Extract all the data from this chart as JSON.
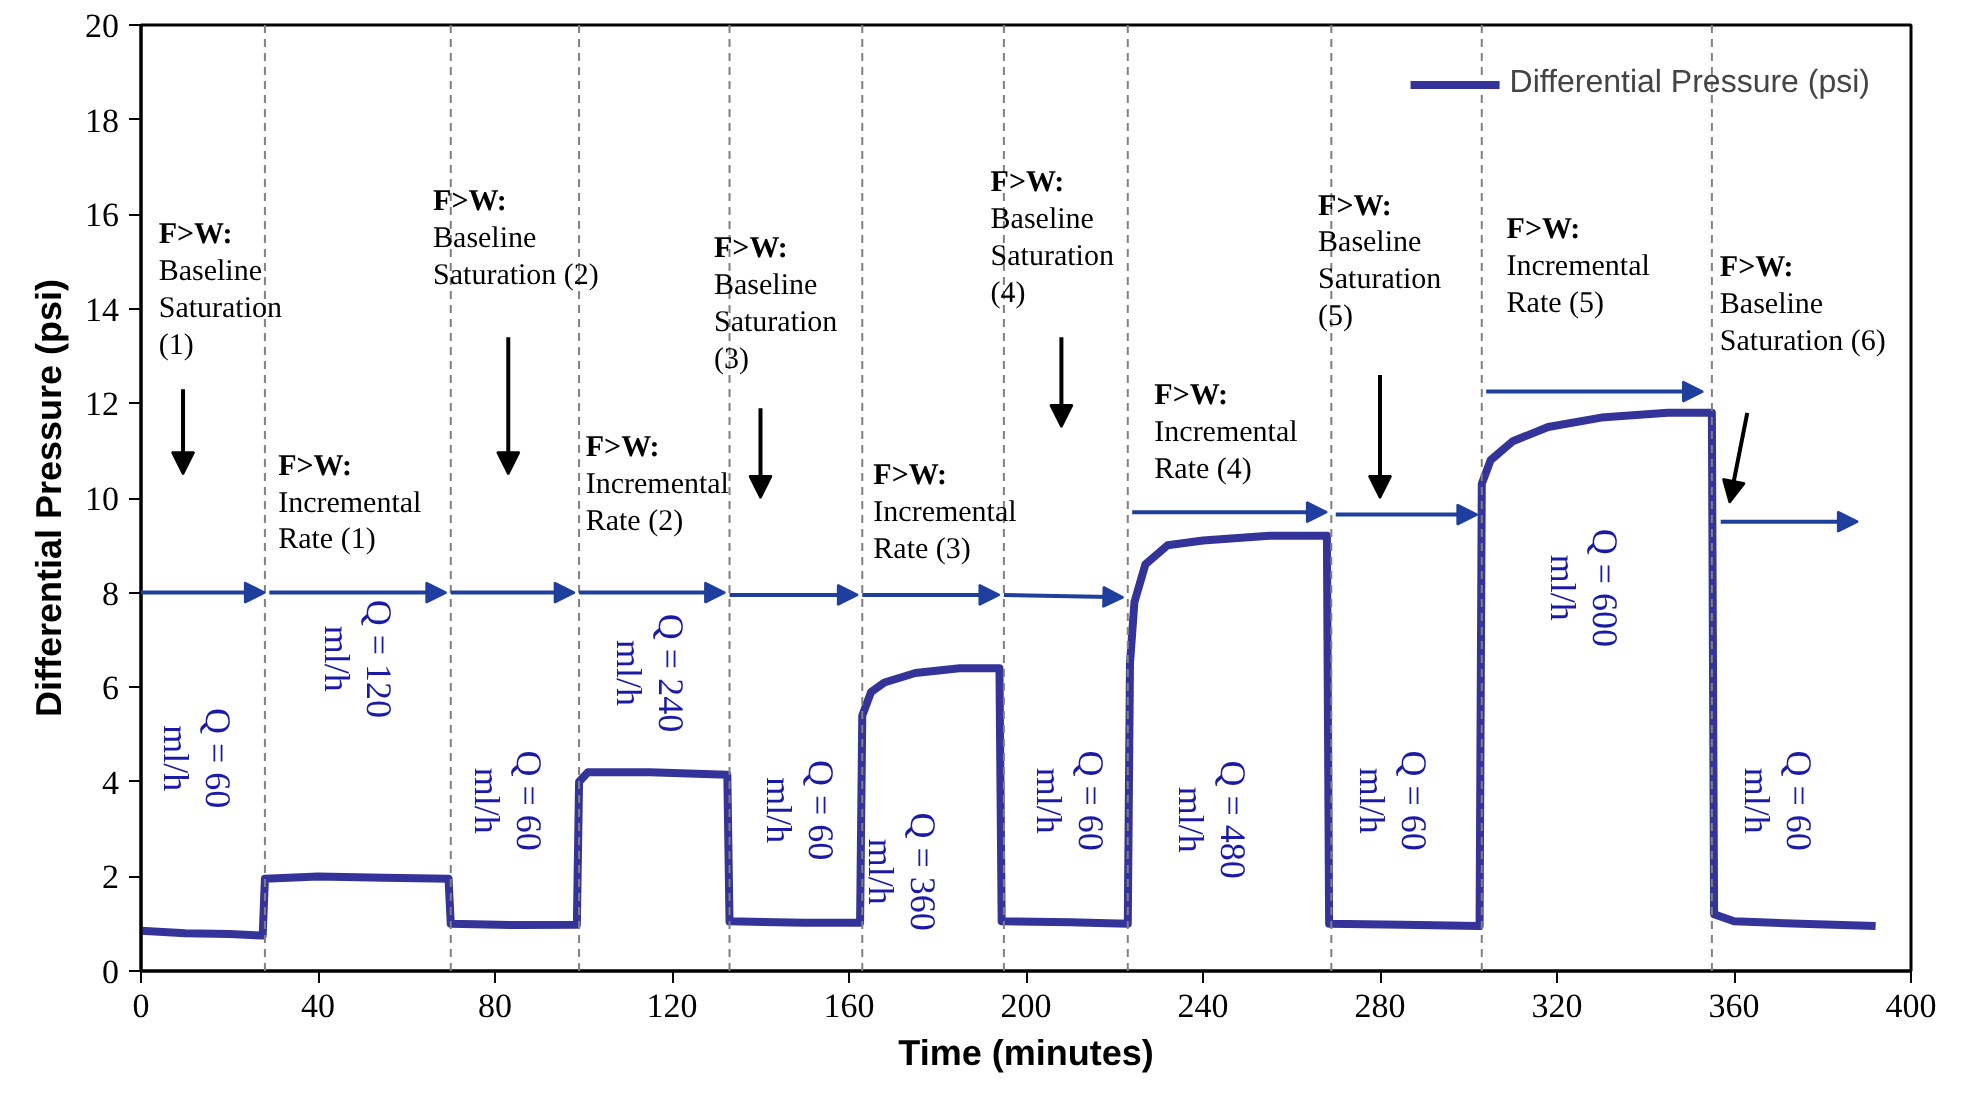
{
  "chart_data": {
    "type": "line",
    "xlabel": "Time (minutes)",
    "ylabel": "Differential Pressure (psi)",
    "xlim": [
      0,
      400
    ],
    "xticks": [
      0,
      40,
      80,
      120,
      160,
      200,
      240,
      280,
      320,
      360,
      400
    ],
    "ylim": [
      0,
      20
    ],
    "yticks": [
      0,
      2,
      4,
      6,
      8,
      10,
      12,
      14,
      16,
      18,
      20
    ],
    "grid": false,
    "legend": "top right",
    "marker": "none",
    "line_style": "solid",
    "series": [
      {
        "name": "Differential Pressure (psi)",
        "color": "#333399",
        "x": [
          0,
          10,
          20,
          27.5,
          28,
          40,
          55,
          69.5,
          70,
          85,
          98.5,
          99,
          101,
          115,
          132.5,
          133,
          150,
          162.5,
          163,
          165,
          168,
          175,
          185,
          194,
          194.5,
          210,
          223,
          223.5,
          224.5,
          227,
          232,
          240,
          255,
          268,
          268.5,
          285,
          302.5,
          303,
          305,
          310,
          318,
          330,
          345,
          355,
          355.5,
          360,
          375,
          392
        ],
        "values": [
          0.85,
          0.8,
          0.78,
          0.75,
          1.95,
          2.0,
          1.97,
          1.95,
          1.0,
          0.97,
          0.98,
          4.0,
          4.2,
          4.2,
          4.15,
          1.05,
          1.02,
          1.02,
          5.4,
          5.9,
          6.1,
          6.3,
          6.4,
          6.4,
          1.05,
          1.03,
          1.0,
          6.5,
          7.8,
          8.6,
          9.0,
          9.1,
          9.2,
          9.2,
          1.0,
          0.98,
          0.95,
          10.3,
          10.8,
          11.2,
          11.5,
          11.7,
          11.8,
          11.8,
          1.2,
          1.05,
          1.0,
          0.95
        ]
      }
    ],
    "ref_lines": [
      {
        "axis": "x",
        "value": 28,
        "color": "#808080",
        "line_style": "dashed"
      },
      {
        "axis": "x",
        "value": 70,
        "color": "#808080",
        "line_style": "dashed"
      },
      {
        "axis": "x",
        "value": 99,
        "color": "#808080",
        "line_style": "dashed"
      },
      {
        "axis": "x",
        "value": 133,
        "color": "#808080",
        "line_style": "dashed"
      },
      {
        "axis": "x",
        "value": 163,
        "color": "#808080",
        "line_style": "dashed"
      },
      {
        "axis": "x",
        "value": 195,
        "color": "#808080",
        "line_style": "dashed"
      },
      {
        "axis": "x",
        "value": 223,
        "color": "#808080",
        "line_style": "dashed"
      },
      {
        "axis": "x",
        "value": 269,
        "color": "#808080",
        "line_style": "dashed"
      },
      {
        "axis": "x",
        "value": 303,
        "color": "#808080",
        "line_style": "dashed"
      },
      {
        "axis": "x",
        "value": 355,
        "color": "#808080",
        "line_style": "dashed"
      }
    ],
    "annotations": [
      "F>W:\nBaseline\nSaturation\n(1)",
      {
        "text": "F>W:\nIncremental\nRate (1)",
        "x": 69,
        "y": 8
      },
      "F>W:\nBaseline\nSaturation (2)",
      "F>W:\nIncremental\nRate (2)",
      "F>W:\nBaseline\nSaturation\n(3)",
      "F>W:\nIncremental\nRate (3)",
      "F>W:\nBaseline\nSaturation\n(4)",
      {
        "text": "F>W:\nIncremental\nRate (4)",
        "x": 268,
        "y": 9.7
      },
      "F>W:\nBaseline\nSaturation\n(5)",
      "F>W:\nIncremental\nRate (5)",
      "F>W:\nBaseline\nSaturation (6)",
      "Q = 60\nml/h",
      "Q = 120\nml/h",
      "Q = 60\nml/h",
      {
        "text": "Q = 240\nml/h",
        "x": 162,
        "y": 7.95
      },
      "Q = 60\nml/h",
      "Q = 360\nml/h",
      "Q = 60\nml/h",
      "Q = 480\nml/h",
      "Q = 60\nml/h",
      "Q = 600\nml/h",
      "Q = 60\nml/h"
    ]
  }
}
